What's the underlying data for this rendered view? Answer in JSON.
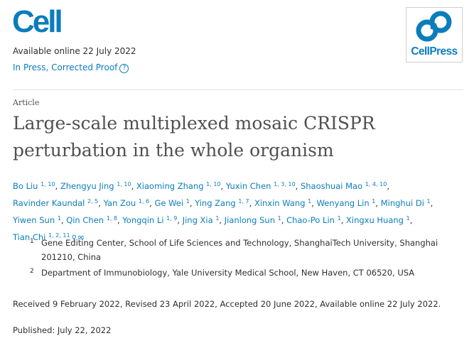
{
  "header": {
    "journal_logo_text": "Cell",
    "publisher_logo_text": "CellPress",
    "available_online": "Available online 22 July 2022",
    "in_press_status": "In Press, Corrected Proof",
    "help_icon_glyph": "?",
    "accent_color": "#0c7dbb"
  },
  "article": {
    "type": "Article",
    "title": "Large-scale multiplexed mosaic CRISPR perturbation in the whole organism"
  },
  "authors": [
    {
      "name": "Bo Liu",
      "sup": "1, 10"
    },
    {
      "name": "Zhengyu Jing",
      "sup": "1, 10"
    },
    {
      "name": "Xiaoming Zhang",
      "sup": "1, 10"
    },
    {
      "name": "Yuxin Chen",
      "sup": "1, 3, 10"
    },
    {
      "name": "Shaoshuai Mao",
      "sup": "1, 4, 10"
    },
    {
      "name": "Ravinder Kaundal",
      "sup": "2, 5"
    },
    {
      "name": "Yan Zou",
      "sup": "1, 6"
    },
    {
      "name": "Ge Wei",
      "sup": "1"
    },
    {
      "name": "Ying Zang",
      "sup": "1, 7"
    },
    {
      "name": "Xinxin Wang",
      "sup": "1"
    },
    {
      "name": "Wenyang Lin",
      "sup": "1"
    },
    {
      "name": "Minghui Di",
      "sup": "1"
    },
    {
      "name": "Yiwen Sun",
      "sup": "1"
    },
    {
      "name": "Qin Chen",
      "sup": "1, 8"
    },
    {
      "name": "Yongqin Li",
      "sup": "1, 9"
    },
    {
      "name": "Jing Xia",
      "sup": "1"
    },
    {
      "name": "Jianlong Sun",
      "sup": "1"
    },
    {
      "name": "Chao-Po Lin",
      "sup": "1"
    },
    {
      "name": "Xingxu Huang",
      "sup": "1"
    },
    {
      "name": "Tian Chi",
      "sup": "1, 2, 11"
    }
  ],
  "author_icons": {
    "corresponding": "person-icon",
    "email": "mail-icon"
  },
  "affiliations": [
    {
      "num": "1",
      "text": "Gene Editing Center, School of Life Sciences and Technology, ShanghaiTech University, Shanghai 201210, China"
    },
    {
      "num": "2",
      "text": "Department of Immunobiology, Yale University Medical School, New Haven, CT 06520, USA"
    }
  ],
  "dates": "Received 9 February 2022, Revised 23 April 2022, Accepted 20 June 2022, Available online 22 July 2022.",
  "published": "Published: July 22, 2022"
}
